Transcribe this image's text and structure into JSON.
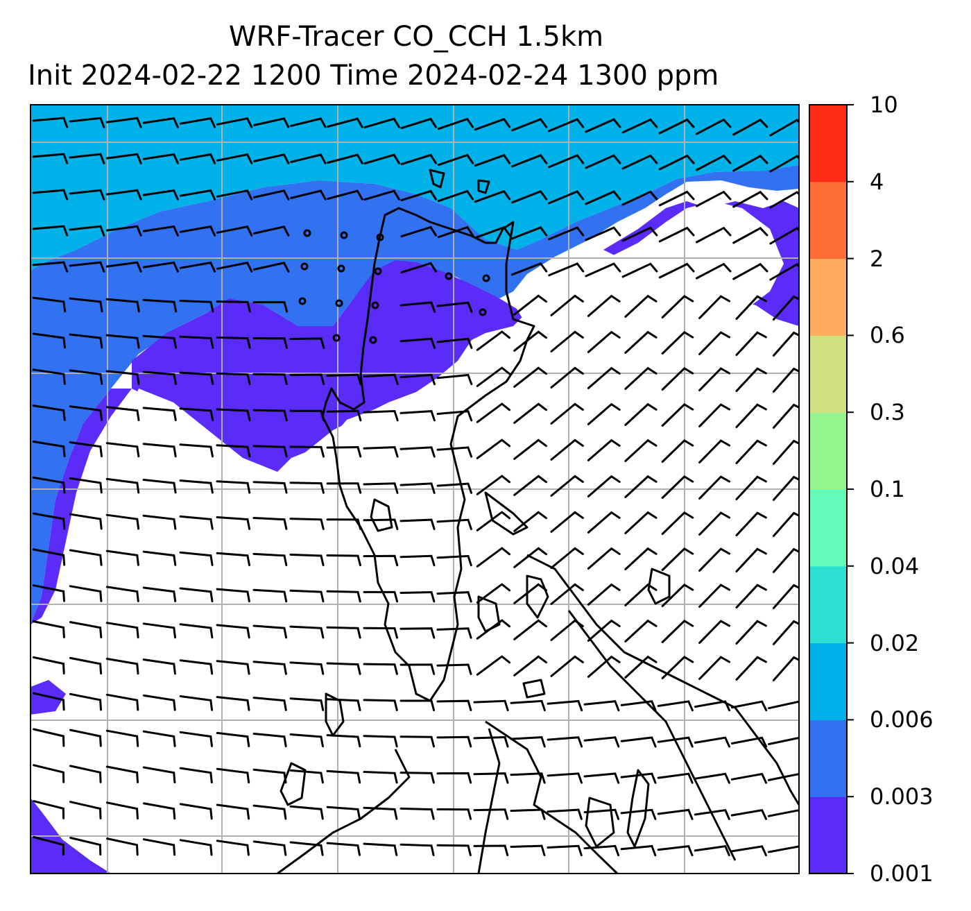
{
  "title": {
    "line1": "WRF-Tracer CO_CCH 1.5km",
    "line2": "Init 2024-02-22 1200 Time 2024-02-24 1300 ppm"
  },
  "colorbar": {
    "levels": [
      "0.001",
      "0.003",
      "0.006",
      "0.02",
      "0.04",
      "0.1",
      "0.3",
      "0.6",
      "2",
      "4",
      "10"
    ],
    "tick_labels": [
      "10",
      "4",
      "2",
      "0.6",
      "0.3",
      "0.1",
      "0.04",
      "0.02",
      "0.006",
      "0.003",
      "0.001"
    ],
    "colors": [
      "#5b2bf7",
      "#3272f0",
      "#00b2e8",
      "#2fdfd3",
      "#62fbb7",
      "#97f590",
      "#d0e07f",
      "#fdad5d",
      "#ff6e37",
      "#ff2b15"
    ]
  },
  "map": {
    "background_color": "#ffffff",
    "gridlines": "on",
    "gridline_color": "#b0b0b0",
    "wind_barbs": "on",
    "coastlines": "on"
  }
}
